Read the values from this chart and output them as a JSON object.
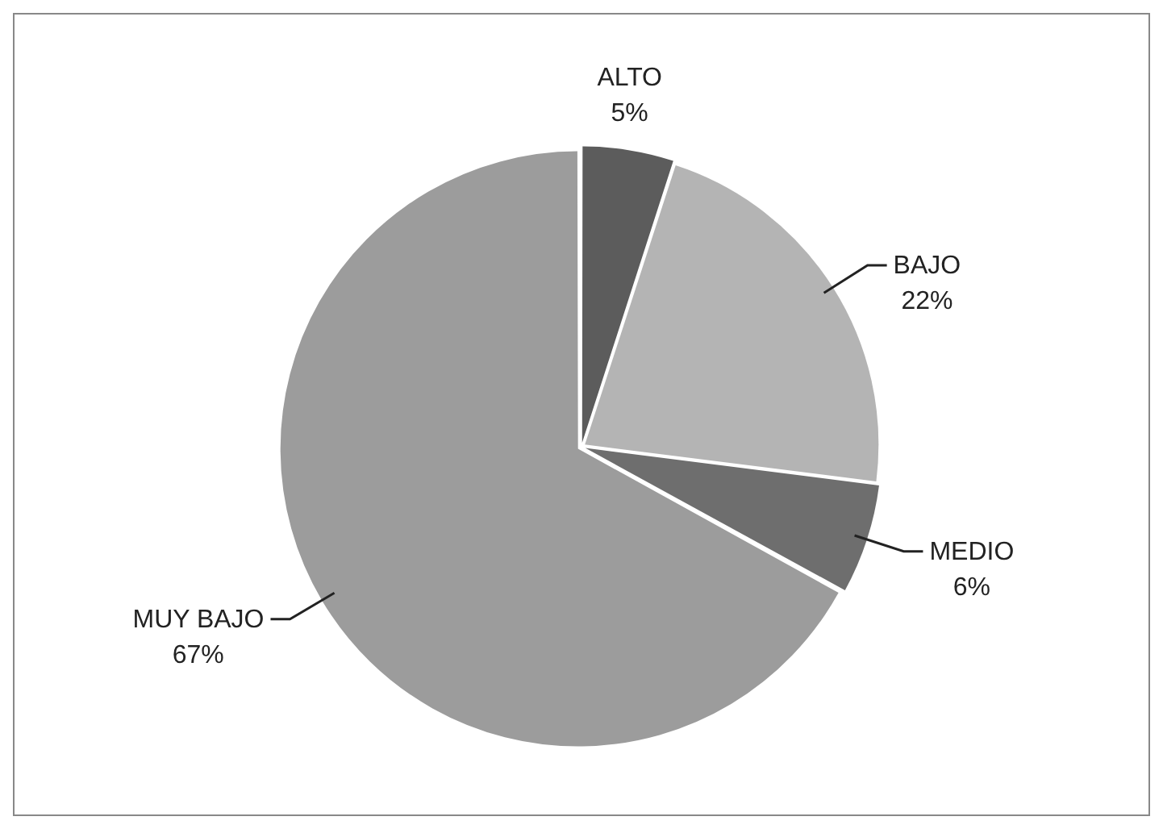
{
  "chart_data": {
    "type": "pie",
    "categories": [
      "ALTO",
      "BAJO",
      "MEDIO",
      "MUY BAJO"
    ],
    "values": [
      5,
      22,
      6,
      67
    ],
    "colors": [
      "#5c5c5c",
      "#b4b4b4",
      "#6e6e6e",
      "#9c9c9c"
    ],
    "value_labels": [
      "5%",
      "22%",
      "6%",
      "67%"
    ],
    "legend": false
  }
}
